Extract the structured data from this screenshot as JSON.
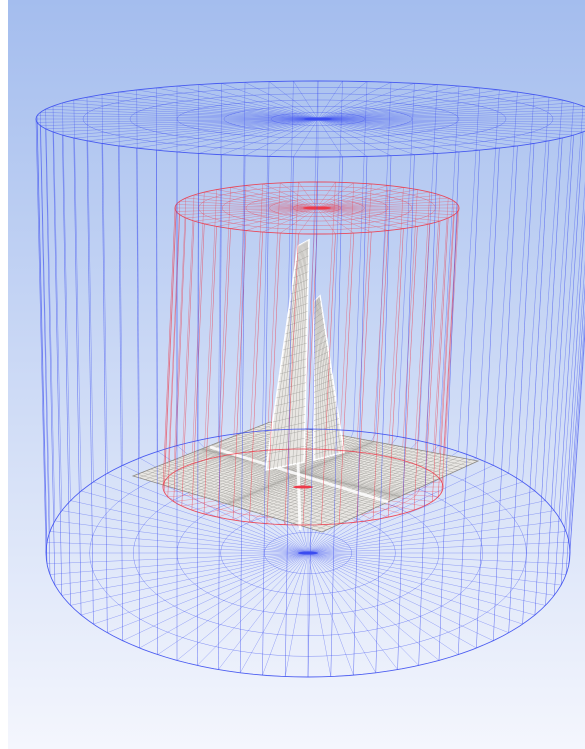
{
  "viewport": {
    "background_top": "#a4bdee",
    "background_bottom": "#f4f6fd",
    "frame_color": "#ffffff"
  },
  "outer_cylinder": {
    "color": "#3a4cf0",
    "radial_divisions": 72
  },
  "inner_cylinder": {
    "color": "#ee3a4a",
    "radial_divisions": 48
  },
  "mesh": {
    "surface_color": "#e8e6e2",
    "line_color": "#9a9894"
  }
}
